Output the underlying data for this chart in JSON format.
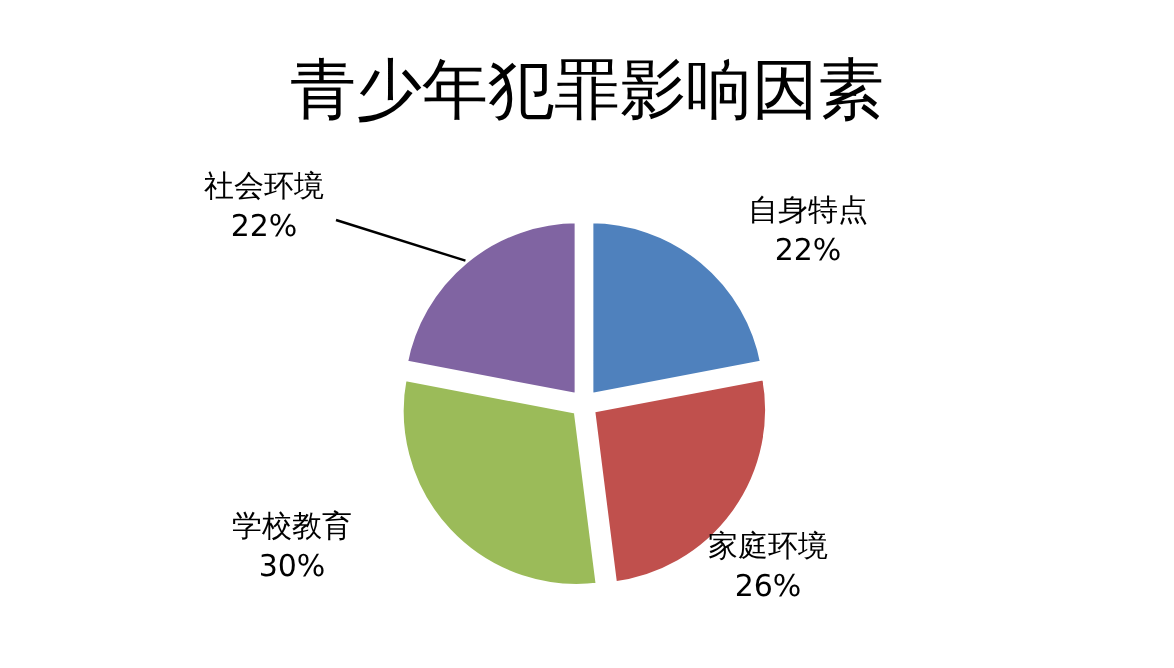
{
  "chart_data": {
    "type": "pie",
    "title": "青少年犯罪影响因素",
    "categories": [
      "自身特点",
      "家庭环境",
      "学校教育",
      "社会环境"
    ],
    "values": [
      22,
      26,
      30,
      22
    ],
    "value_labels": [
      "22%",
      "26%",
      "30%",
      "22%"
    ],
    "colors": [
      "#4f81bd",
      "#c0504d",
      "#9bbb59",
      "#8064a2"
    ]
  }
}
